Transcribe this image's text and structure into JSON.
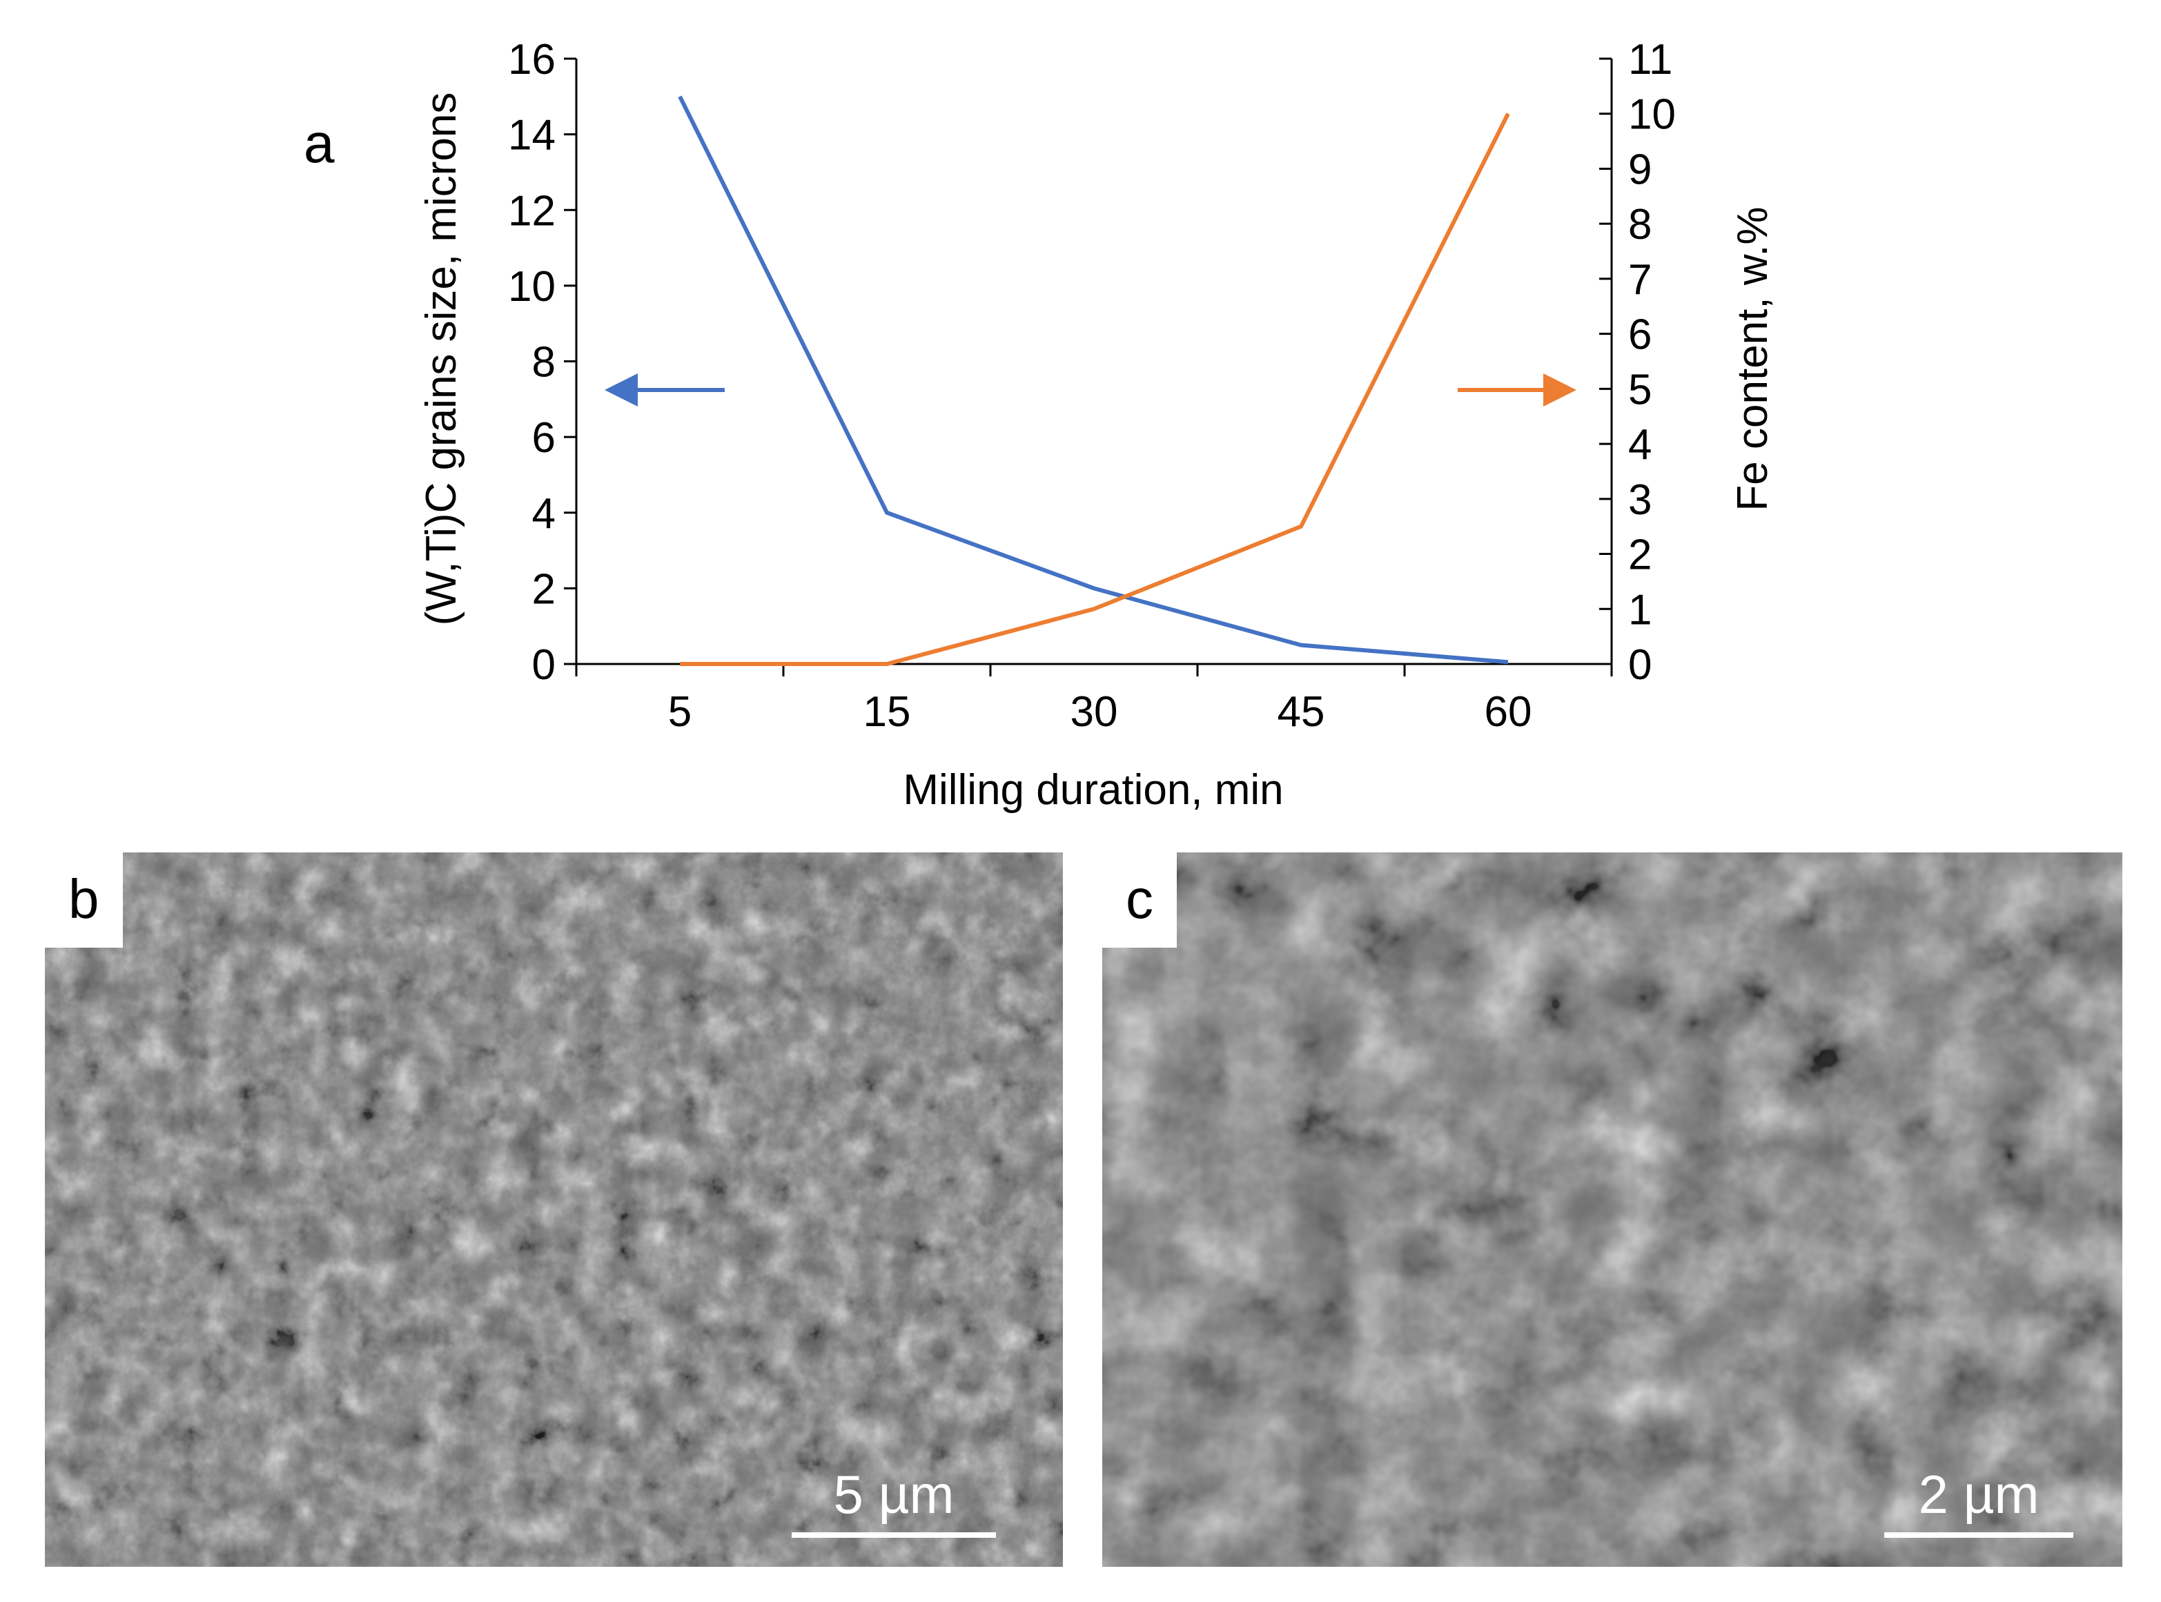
{
  "panels": {
    "a": "a",
    "b": "b",
    "c": "c"
  },
  "chart_data": {
    "type": "line",
    "categories": [
      "5",
      "15",
      "30",
      "45",
      "60"
    ],
    "xlabel": "Milling duration, min",
    "ylabel": "(W,Ti)C grains size, microns",
    "y2label": "Fe content, w.%",
    "ylim": [
      0,
      16
    ],
    "y2lim": [
      0,
      11
    ],
    "yticks": [
      "0",
      "2",
      "4",
      "6",
      "8",
      "10",
      "12",
      "14",
      "16"
    ],
    "y2ticks": [
      "0",
      "1",
      "2",
      "3",
      "4",
      "5",
      "6",
      "7",
      "8",
      "9",
      "10",
      "11"
    ],
    "series": [
      {
        "axis": "left",
        "color": "#4472C4",
        "values": [
          15,
          4,
          2,
          0.5,
          0.05
        ]
      },
      {
        "axis": "right",
        "color": "#ED7D31",
        "values": [
          0,
          0,
          1,
          2.5,
          10
        ]
      }
    ],
    "arrows": [
      {
        "points_to": "left",
        "color": "#4472C4"
      },
      {
        "points_to": "right",
        "color": "#ED7D31"
      }
    ]
  },
  "sem_images": [
    {
      "label": "b",
      "scale_text": "5 µm"
    },
    {
      "label": "c",
      "scale_text": "2 µm"
    }
  ]
}
